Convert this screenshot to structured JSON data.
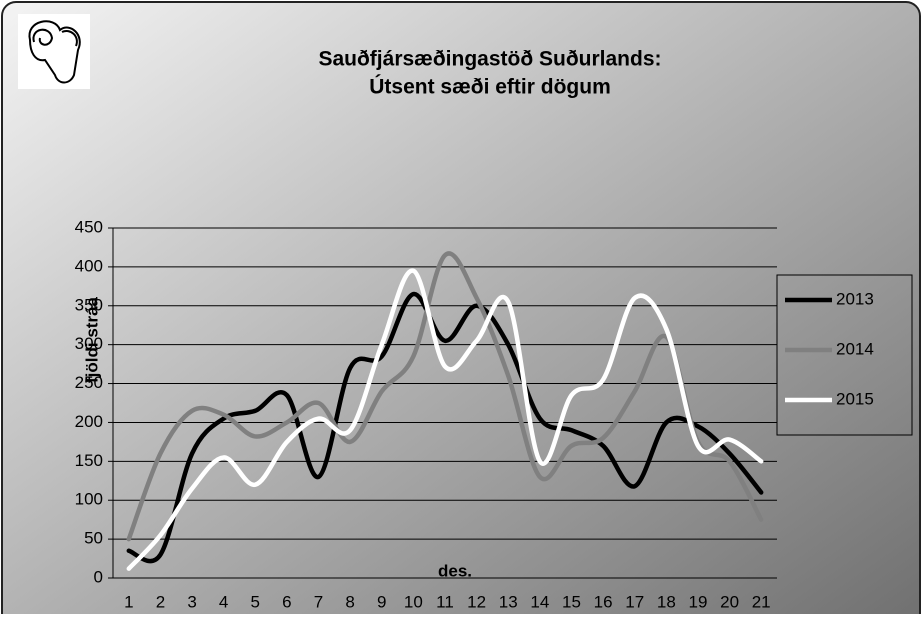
{
  "chart_data": {
    "type": "line",
    "title": "Sauðfjársæðingastöð Suðurlands:",
    "subtitle": "Útsent sæði eftir dögum",
    "y_label": "fjöldi stráa",
    "x_label": "des.",
    "categories": [
      "1",
      "2",
      "3",
      "4",
      "5",
      "6",
      "7",
      "8",
      "9",
      "10",
      "11",
      "12",
      "13",
      "14",
      "15",
      "16",
      "17",
      "18",
      "19",
      "20",
      "21"
    ],
    "series": [
      {
        "name": "2013",
        "color": "#000000",
        "values": [
          35,
          30,
          160,
          205,
          215,
          235,
          130,
          270,
          285,
          365,
          305,
          350,
          300,
          205,
          190,
          170,
          118,
          200,
          195,
          160,
          110
        ]
      },
      {
        "name": "2014",
        "color": "#808080",
        "values": [
          50,
          160,
          215,
          210,
          182,
          200,
          225,
          175,
          240,
          285,
          415,
          360,
          260,
          130,
          170,
          180,
          240,
          310,
          175,
          150,
          75
        ]
      },
      {
        "name": "2015",
        "color": "#ffffff",
        "values": [
          12,
          55,
          115,
          155,
          120,
          175,
          205,
          190,
          300,
          395,
          272,
          305,
          355,
          150,
          235,
          255,
          360,
          320,
          170,
          178,
          150
        ]
      }
    ],
    "ylim": [
      0,
      450
    ],
    "yticks": [
      0,
      50,
      100,
      150,
      200,
      250,
      300,
      350,
      400,
      450
    ],
    "grid": true,
    "smooth": true,
    "legend": "right"
  }
}
